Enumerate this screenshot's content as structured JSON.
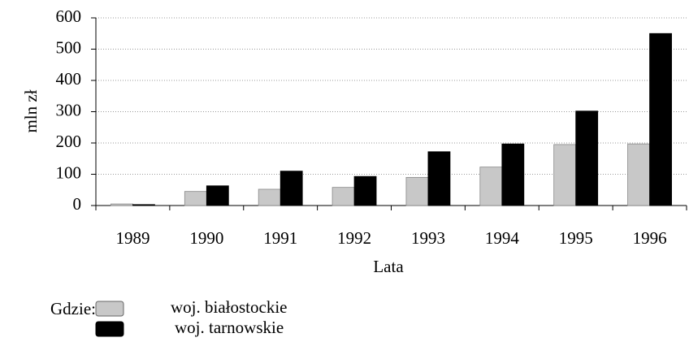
{
  "chart_data": {
    "type": "bar",
    "categories": [
      "1989",
      "1990",
      "1991",
      "1992",
      "1993",
      "1994",
      "1995",
      "1996"
    ],
    "series": [
      {
        "name": "woj. białostockie",
        "color": "#c8c8c8",
        "values": [
          5,
          45,
          52,
          58,
          90,
          123,
          195,
          197
        ]
      },
      {
        "name": "woj. tarnowskie",
        "color": "#000000",
        "values": [
          3,
          63,
          110,
          93,
          172,
          197,
          302,
          550
        ]
      }
    ],
    "ylim": [
      0,
      600
    ],
    "yticks": [
      0,
      100,
      200,
      300,
      400,
      500,
      600
    ],
    "grid": true,
    "y_label": "mln zł",
    "x_label": "Lata",
    "legend_title": "Gdzie:"
  }
}
